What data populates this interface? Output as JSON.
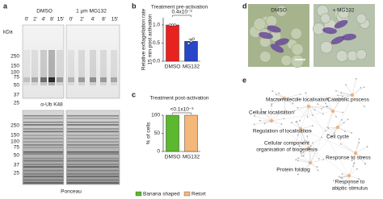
{
  "figure": {
    "panel_a": {
      "letter": "a",
      "kda_label": "kDa",
      "groups": [
        "DMSO",
        "1 µm MG132"
      ],
      "lanes": [
        "0'",
        "2'",
        "4'",
        "8'",
        "15'",
        "0'",
        "2'",
        "4'",
        "8'",
        "15'"
      ],
      "upper_markers": [
        250,
        150,
        100,
        75,
        50,
        37,
        25
      ],
      "upper_label": "α-Ub K48",
      "lower_markers": [
        250,
        150,
        100,
        75,
        50,
        37,
        25
      ],
      "lower_label": "Ponceau"
    },
    "panel_d": {
      "letter": "d",
      "labels": [
        "DMSO",
        "+ MG132"
      ]
    },
    "panel_e": {
      "letter": "e",
      "nodes": [
        {
          "label": [
            "Macromolecule localisation"
          ]
        },
        {
          "label": [
            "Catabolic process"
          ]
        },
        {
          "label": [
            "Cellular localisation"
          ]
        },
        {
          "label": [
            "Regulation of localisation"
          ]
        },
        {
          "label": [
            "Cell cycle"
          ]
        },
        {
          "label": [
            "Cellular component",
            "organisation of biogenesis"
          ]
        },
        {
          "label": [
            "Response to stress"
          ]
        },
        {
          "label": [
            "Protein folding"
          ]
        },
        {
          "label": [
            "Response to",
            "abiotic stimulus"
          ]
        }
      ]
    }
  },
  "chart_data": [
    {
      "letter": "b",
      "type": "bar",
      "title": "Treatment pre-activation",
      "ylabel": [
        "Relative exflagellation rate",
        "15 min post activation"
      ],
      "categories": [
        "DMSO",
        "MG132"
      ],
      "values": [
        1.0,
        0.55
      ],
      "errors": [
        0.01,
        0.06
      ],
      "colors": [
        "#e8231f",
        "#2746c8"
      ],
      "points": [
        [
          1.0,
          1.0,
          1.0
        ],
        [
          0.49,
          0.55,
          0.62
        ]
      ],
      "ylim": [
        0,
        1.2
      ],
      "yticks": [
        {
          "value": 0,
          "label": "0.0"
        },
        0.5,
        {
          "value": 1,
          "label": "1.0"
        }
      ],
      "annotation": "0.4x10⁻³"
    },
    {
      "letter": "c",
      "type": "stacked_bar",
      "title": "Treatment post-activation",
      "ylabel": [
        "% of cells"
      ],
      "categories": [
        "DMSO",
        "MG132"
      ],
      "series": [
        {
          "name": "Banana shaped",
          "color": "#5cb82e",
          "values": [
            100,
            0
          ]
        },
        {
          "name": "Retort",
          "color": "#f5b77a",
          "values": [
            0,
            100
          ]
        }
      ],
      "ylim": [
        0,
        100
      ],
      "yticks": [
        0,
        50,
        100
      ],
      "annotation": "<0.1x10⁻³"
    }
  ]
}
